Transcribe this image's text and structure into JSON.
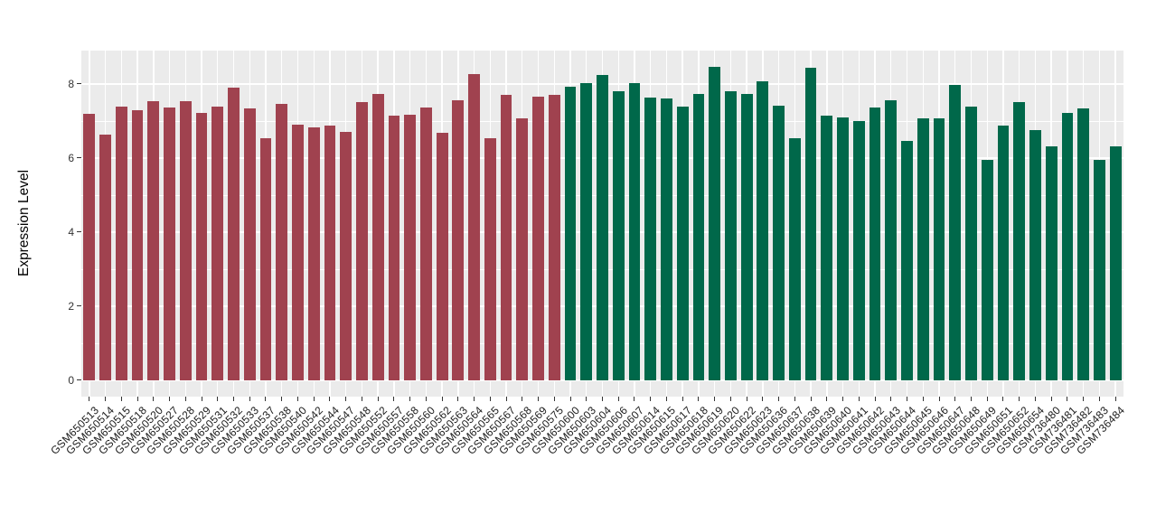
{
  "chart_data": {
    "type": "bar",
    "title": "",
    "xlabel": "",
    "ylabel": "Expression Level",
    "yticks": [
      0,
      2,
      4,
      6,
      8
    ],
    "yticks_minor": [
      1,
      3,
      5,
      7
    ],
    "ylim": [
      -0.44,
      8.9
    ],
    "grid": "white major and minor horizontal lines plus vertical line per category on gray panel",
    "legend_position": "none",
    "panel_background": "#EBEBEB",
    "gridline_color": "#FFFFFF",
    "axis_tick_color": "#333333",
    "axis_label_color": "#1A1A1A",
    "groups": [
      {
        "name": "group-1-maroon",
        "color": "#A0424F",
        "start": 0,
        "count": 30
      },
      {
        "name": "group-2-green",
        "color": "#00684A",
        "start": 30,
        "count": 35
      }
    ],
    "categories": [
      "GSM650513",
      "GSM650514",
      "GSM650515",
      "GSM650518",
      "GSM650520",
      "GSM650527",
      "GSM650528",
      "GSM650529",
      "GSM650531",
      "GSM650532",
      "GSM650533",
      "GSM650537",
      "GSM650538",
      "GSM650540",
      "GSM650542",
      "GSM650544",
      "GSM650547",
      "GSM650548",
      "GSM650552",
      "GSM650557",
      "GSM650558",
      "GSM650560",
      "GSM650562",
      "GSM650563",
      "GSM650564",
      "GSM650565",
      "GSM650567",
      "GSM650568",
      "GSM650569",
      "GSM650575",
      "GSM650600",
      "GSM650603",
      "GSM650604",
      "GSM650606",
      "GSM650607",
      "GSM650614",
      "GSM650615",
      "GSM650617",
      "GSM650618",
      "GSM650619",
      "GSM650620",
      "GSM650622",
      "GSM650623",
      "GSM650636",
      "GSM650637",
      "GSM650638",
      "GSM650639",
      "GSM650640",
      "GSM650641",
      "GSM650642",
      "GSM650643",
      "GSM650644",
      "GSM650645",
      "GSM650646",
      "GSM650647",
      "GSM650648",
      "GSM650649",
      "GSM650651",
      "GSM650652",
      "GSM650654",
      "GSM736480",
      "GSM736481",
      "GSM736482",
      "GSM736483",
      "GSM736484"
    ],
    "values": [
      7.2,
      6.62,
      7.4,
      7.28,
      7.53,
      7.37,
      7.53,
      7.22,
      7.4,
      7.9,
      7.33,
      6.53,
      7.47,
      6.9,
      6.82,
      6.88,
      6.71,
      7.5,
      7.74,
      7.14,
      7.18,
      7.36,
      6.68,
      7.55,
      8.27,
      6.53,
      7.7,
      7.07,
      7.65,
      7.7,
      7.92,
      8.02,
      8.24,
      7.8,
      8.02,
      7.62,
      7.6,
      7.38,
      7.74,
      8.45,
      7.8,
      7.74,
      8.06,
      7.42,
      6.53,
      8.43,
      7.14,
      7.09,
      7.01,
      7.37,
      7.55,
      6.45,
      7.07,
      7.07,
      7.97,
      7.38,
      5.96,
      6.87,
      7.52,
      6.75,
      6.32,
      7.21,
      7.34,
      5.96,
      6.31
    ]
  }
}
